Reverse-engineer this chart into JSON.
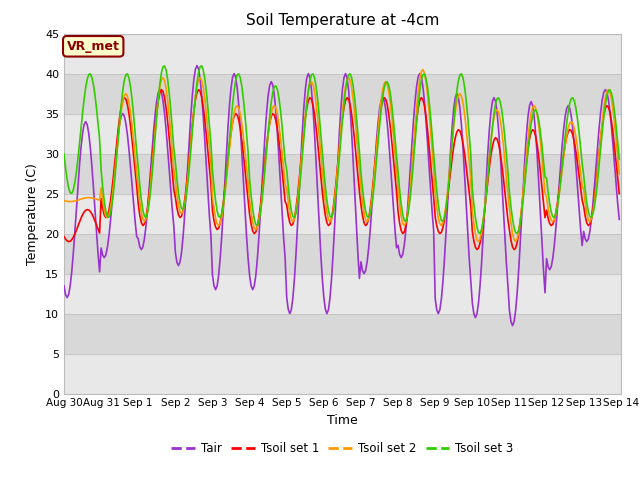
{
  "title": "Soil Temperature at -4cm",
  "xlabel": "Time",
  "ylabel": "Temperature (C)",
  "ylim": [
    0,
    45
  ],
  "colors": {
    "Tair": "#9933cc",
    "Tsoil1": "#ff0000",
    "Tsoil2": "#ff9900",
    "Tsoil3": "#33cc00"
  },
  "legend_labels": [
    "Tair",
    "Tsoil set 1",
    "Tsoil set 2",
    "Tsoil set 3"
  ],
  "xtick_labels": [
    "Aug 30",
    "Aug 31",
    "Sep 1",
    "Sep 2",
    "Sep 3",
    "Sep 4",
    "Sep 5",
    "Sep 6",
    "Sep 7",
    "Sep 8",
    "Sep 9",
    "Sep 10",
    "Sep 11",
    "Sep 12",
    "Sep 13",
    "Sep 14"
  ],
  "ytick_values": [
    0,
    5,
    10,
    15,
    20,
    25,
    30,
    35,
    40,
    45
  ],
  "annotation_text": "VR_met",
  "annotation_color": "#8B0000",
  "annotation_bg": "#ffffcc",
  "n_days": 15,
  "hours_per_day": 24,
  "band_colors": [
    "#e8e8e8",
    "#d8d8d8"
  ],
  "plot_bg": "#e0e0e0",
  "fig_bg": "#ffffff",
  "grid_line_color": "#c8c8c8",
  "day_mins_air": [
    12,
    17,
    18,
    16,
    13,
    13,
    10,
    10,
    15,
    17,
    10,
    9.5,
    8.5,
    15.5,
    19,
    22.5
  ],
  "day_maxs_air": [
    34,
    35,
    38,
    41,
    40,
    39,
    40,
    40,
    37,
    40,
    37.5,
    37,
    36.5,
    36,
    38,
    39
  ],
  "day_mins_s1": [
    19,
    22,
    21,
    22,
    20.5,
    20,
    21,
    21,
    21,
    20,
    20,
    18,
    18,
    21,
    21,
    22
  ],
  "day_maxs_s1": [
    23,
    37,
    38,
    38,
    35,
    35,
    37,
    37,
    37,
    37,
    33,
    32,
    33,
    33,
    36,
    36
  ],
  "day_mins_s2": [
    24,
    22,
    21.5,
    22.5,
    21,
    20.5,
    21.5,
    21.5,
    21.5,
    21,
    21,
    19,
    19,
    21.5,
    21.5,
    22.5
  ],
  "day_maxs_s2": [
    24.5,
    37.5,
    39.5,
    39.5,
    36,
    36,
    39,
    39.5,
    39,
    40.5,
    37.5,
    35.5,
    36,
    34,
    38,
    39
  ],
  "day_mins_s3": [
    25,
    22,
    22,
    23,
    22,
    21,
    22,
    22,
    22,
    21.5,
    21.5,
    20,
    20,
    22,
    22,
    22.5
  ],
  "day_maxs_s3": [
    40,
    40,
    41,
    41,
    40,
    38.5,
    40,
    40,
    39,
    40,
    40,
    37,
    35.5,
    37,
    38,
    39
  ]
}
